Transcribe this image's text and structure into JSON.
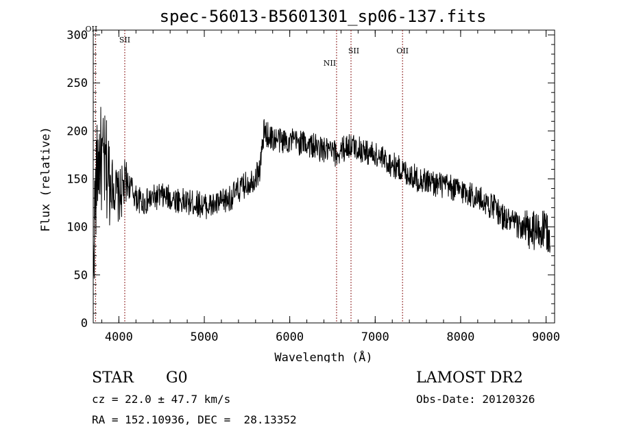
{
  "chart_data": {
    "type": "line",
    "title": "spec-56013-B5601301_sp06-137.fits",
    "xlabel": "Wavelength (Å)",
    "ylabel": "Flux (relative)",
    "xlim": [
      3700,
      9100
    ],
    "ylim": [
      0,
      305
    ],
    "xticks": [
      "4000",
      "5000",
      "6000",
      "7000",
      "8000",
      "9000"
    ],
    "yticks": [
      "0",
      "50",
      "100",
      "150",
      "200",
      "250",
      "300"
    ],
    "grid": false,
    "line_color": "#000000",
    "marker_color": "#8b1a1a",
    "lines": [
      {
        "label": "OII",
        "x": 3727
      },
      {
        "label": "SII",
        "x": 4069
      },
      {
        "label": "NII",
        "x": 6548
      },
      {
        "label": "SII",
        "x": 6717
      },
      {
        "label": "OII",
        "x": 7320
      }
    ],
    "series": [
      {
        "x": [
          3700,
          3720,
          3740,
          3760,
          3780,
          3800,
          3850,
          3900,
          3950,
          4000,
          4050,
          4100,
          4150,
          4200,
          4300,
          4400,
          4500,
          4600,
          4700,
          4800,
          4900,
          5000,
          5100,
          5200,
          5300,
          5400,
          5500,
          5600,
          5650,
          5700,
          5750,
          5800,
          5900,
          6000,
          6100,
          6200,
          6300,
          6400,
          6500,
          6550,
          6600,
          6700,
          6800,
          6900,
          7000,
          7100,
          7200,
          7300,
          7400,
          7500,
          7600,
          7700,
          7800,
          7900,
          8000,
          8100,
          8200,
          8300,
          8400,
          8500,
          8600,
          8700,
          8800,
          8900,
          9000,
          9050
        ],
        "y": [
          60,
          120,
          150,
          170,
          175,
          165,
          160,
          150,
          140,
          130,
          140,
          145,
          140,
          130,
          125,
          130,
          132,
          130,
          128,
          125,
          125,
          122,
          122,
          125,
          130,
          138,
          145,
          152,
          160,
          200,
          195,
          192,
          190,
          190,
          188,
          187,
          183,
          180,
          178,
          175,
          180,
          185,
          182,
          178,
          175,
          170,
          165,
          160,
          155,
          150,
          148,
          145,
          143,
          140,
          138,
          135,
          130,
          125,
          120,
          110,
          105,
          100,
          95,
          95,
          95,
          92
        ]
      }
    ]
  },
  "info": {
    "class": "STAR",
    "subclass": "G0",
    "survey": "LAMOST DR2",
    "cz": "cz = 22.0 ± 47.7 km/s",
    "obs_date": "Obs-Date: 20120326",
    "coords": "RA = 152.10936, DEC =  28.13352"
  }
}
